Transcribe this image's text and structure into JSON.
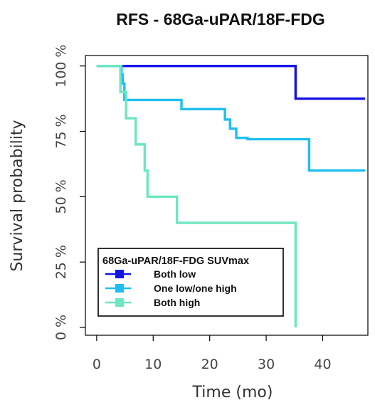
{
  "chart_data": {
    "type": "line",
    "title": "RFS - 68Ga-uPAR/18F-FDG",
    "xlabel": "Time (mo)",
    "ylabel": "Survival probability",
    "xlim": [
      -2,
      48
    ],
    "ylim": [
      -0.03,
      1.04
    ],
    "x_ticks": [
      0,
      10,
      20,
      30,
      40
    ],
    "x_tick_labels": [
      "0",
      "10",
      "20",
      "30",
      "40"
    ],
    "y_ticks": [
      0,
      0.25,
      0.5,
      0.75,
      1.0
    ],
    "y_tick_labels": [
      "0 %",
      "25 %",
      "50 %",
      "75 %",
      "100 %"
    ],
    "legend": {
      "title": "68Ga-uPAR/18F-FDG SUVmax",
      "placement": "bottom-left"
    },
    "step": true,
    "series": [
      {
        "name": "Both low",
        "color": "#1414e6",
        "x": [
          0,
          35.2,
          47.5
        ],
        "y": [
          1.0,
          0.875,
          0.875
        ]
      },
      {
        "name": "One low/one high",
        "color": "#1ebff0",
        "x": [
          0,
          4.4,
          4.6,
          4.9,
          15.0,
          22.7,
          23.6,
          24.7,
          26.7,
          37.6,
          47.5
        ],
        "y": [
          1.0,
          0.967,
          0.933,
          0.87,
          0.835,
          0.795,
          0.76,
          0.725,
          0.72,
          0.6,
          0.6
        ]
      },
      {
        "name": "Both high",
        "color": "#6ee6c2",
        "x": [
          0,
          4.2,
          5.2,
          6.9,
          8.5,
          9.0,
          14.2,
          35.2,
          35.2
        ],
        "y": [
          1.0,
          0.9,
          0.8,
          0.7,
          0.6,
          0.5,
          0.4,
          0.4,
          0.0
        ]
      }
    ]
  }
}
